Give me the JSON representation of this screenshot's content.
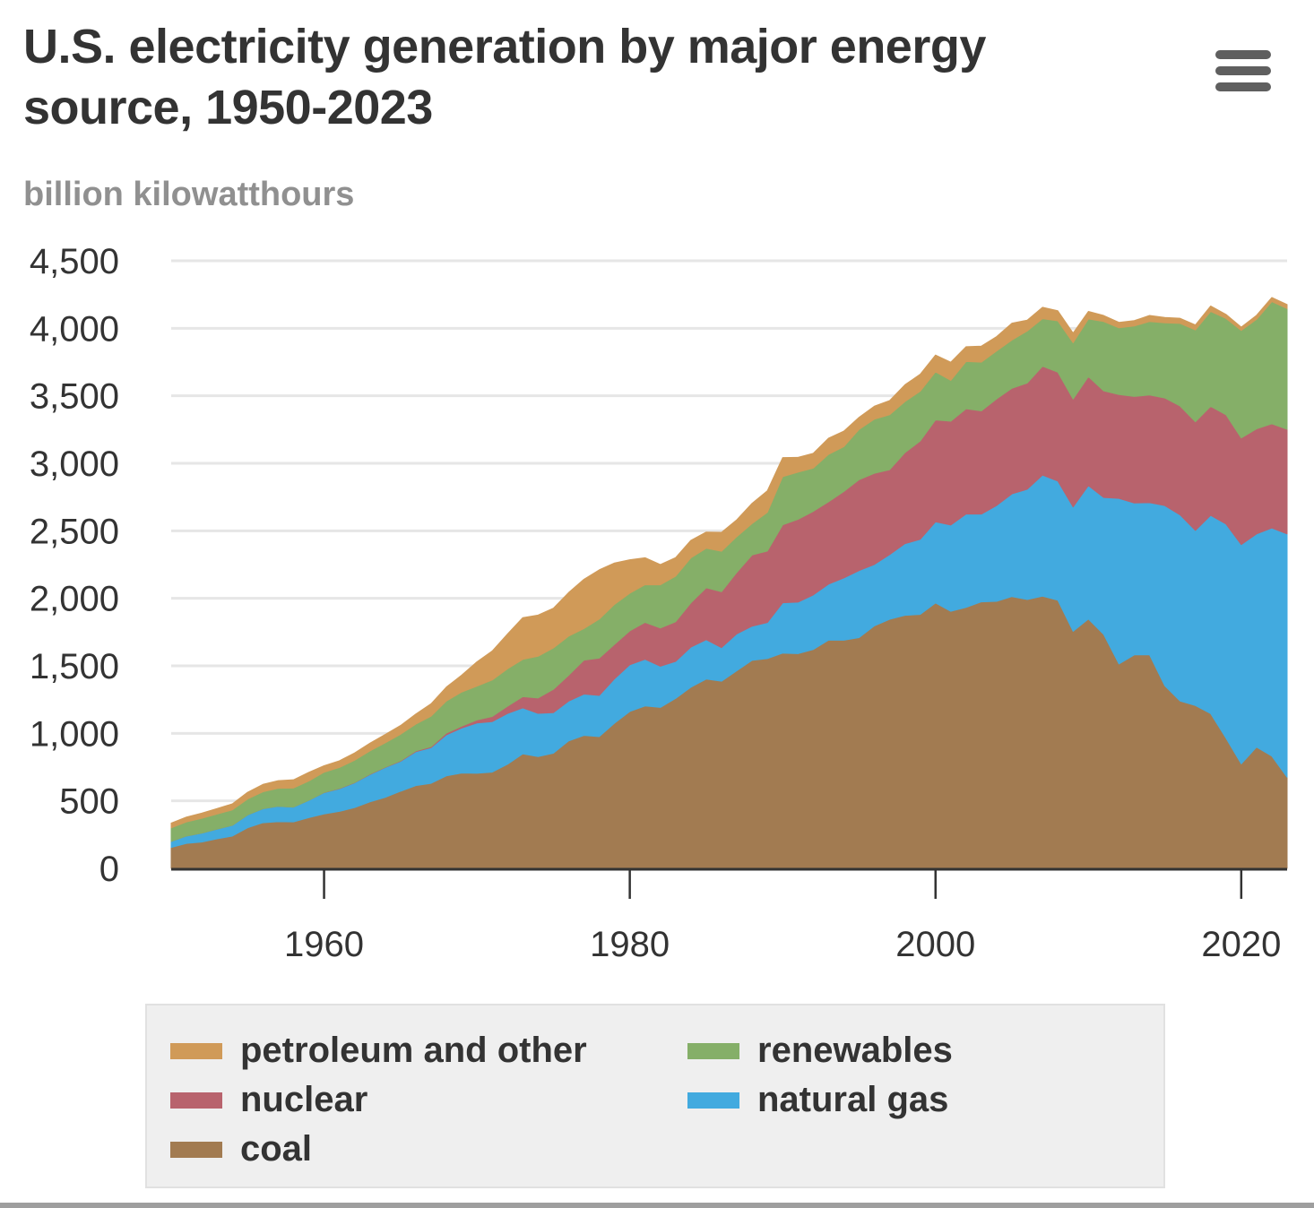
{
  "header": {
    "title": "U.S. electricity generation by major energy source, 1950-2023",
    "menu_icon": "hamburger-menu-icon"
  },
  "chart_data": {
    "type": "area",
    "stacked": true,
    "title": "U.S. electricity generation by major energy source, 1950-2023",
    "ylabel": "billion kilowatthours",
    "xlabel": "",
    "ylim": [
      0,
      4500
    ],
    "xlim": [
      1950,
      2023
    ],
    "yticks": [
      0,
      500,
      1000,
      1500,
      2000,
      2500,
      3000,
      3500,
      4000,
      4500
    ],
    "ytick_labels": [
      "0",
      "500",
      "1,000",
      "1,500",
      "2,000",
      "2,500",
      "3,000",
      "3,500",
      "4,000",
      "4,500"
    ],
    "xticks": [
      1960,
      1980,
      2000,
      2020
    ],
    "xtick_labels": [
      "1960",
      "1980",
      "2000",
      "2020"
    ],
    "grid": true,
    "legend_position": "bottom",
    "x": [
      1950,
      1951,
      1952,
      1953,
      1954,
      1955,
      1956,
      1957,
      1958,
      1959,
      1960,
      1961,
      1962,
      1963,
      1964,
      1965,
      1966,
      1967,
      1968,
      1969,
      1970,
      1971,
      1972,
      1973,
      1974,
      1975,
      1976,
      1977,
      1978,
      1979,
      1980,
      1981,
      1982,
      1983,
      1984,
      1985,
      1986,
      1987,
      1988,
      1989,
      1990,
      1991,
      1992,
      1993,
      1994,
      1995,
      1996,
      1997,
      1998,
      1999,
      2000,
      2001,
      2002,
      2003,
      2004,
      2005,
      2006,
      2007,
      2008,
      2009,
      2010,
      2011,
      2012,
      2013,
      2014,
      2015,
      2016,
      2017,
      2018,
      2019,
      2020,
      2021,
      2022,
      2023
    ],
    "series": [
      {
        "name": "coal",
        "color": "#a27b51",
        "values": [
          155,
          185,
          195,
          219,
          239,
          301,
          338,
          346,
          344,
          376,
          403,
          422,
          450,
          493,
          526,
          571,
          613,
          630,
          685,
          706,
          704,
          713,
          771,
          848,
          828,
          853,
          944,
          985,
          976,
          1075,
          1162,
          1203,
          1192,
          1259,
          1342,
          1402,
          1386,
          1464,
          1541,
          1554,
          1594,
          1590,
          1621,
          1690,
          1690,
          1709,
          1796,
          1845,
          1874,
          1881,
          1966,
          1904,
          1933,
          1974,
          1978,
          2013,
          1991,
          2016,
          1986,
          1756,
          1847,
          1733,
          1514,
          1581,
          1582,
          1352,
          1239,
          1206,
          1146,
          965,
          774,
          898,
          832,
          675
        ]
      },
      {
        "name": "natural gas",
        "color": "#42aadf",
        "values": [
          45,
          55,
          66,
          72,
          80,
          95,
          104,
          114,
          110,
          128,
          158,
          168,
          184,
          202,
          221,
          222,
          251,
          264,
          304,
          333,
          373,
          374,
          376,
          341,
          320,
          300,
          295,
          306,
          305,
          329,
          346,
          346,
          305,
          274,
          297,
          292,
          249,
          273,
          253,
          267,
          373,
          382,
          404,
          415,
          461,
          497,
          455,
          479,
          531,
          556,
          601,
          639,
          691,
          650,
          710,
          761,
          817,
          897,
          883,
          921,
          988,
          1014,
          1226,
          1125,
          1127,
          1335,
          1379,
          1297,
          1469,
          1586,
          1624,
          1579,
          1689,
          1802
        ]
      },
      {
        "name": "nuclear",
        "color": "#b8636d",
        "values": [
          0,
          0,
          0,
          0,
          0,
          0,
          0,
          0,
          0,
          0,
          1,
          2,
          2,
          3,
          3,
          4,
          6,
          8,
          13,
          14,
          22,
          38,
          54,
          83,
          114,
          173,
          191,
          251,
          276,
          255,
          251,
          273,
          283,
          294,
          328,
          384,
          414,
          455,
          527,
          529,
          577,
          613,
          619,
          610,
          640,
          673,
          675,
          629,
          674,
          728,
          754,
          769,
          780,
          764,
          789,
          782,
          787,
          806,
          806,
          799,
          807,
          790,
          769,
          789,
          797,
          797,
          806,
          805,
          807,
          809,
          790,
          778,
          772,
          775
        ]
      },
      {
        "name": "renewables",
        "color": "#85af68",
        "values": [
          100,
          104,
          110,
          111,
          114,
          118,
          125,
          133,
          141,
          143,
          150,
          155,
          165,
          172,
          180,
          196,
          198,
          225,
          237,
          253,
          251,
          270,
          277,
          276,
          309,
          306,
          290,
          234,
          289,
          296,
          279,
          279,
          320,
          337,
          333,
          293,
          300,
          265,
          233,
          287,
          357,
          349,
          320,
          351,
          332,
          372,
          401,
          407,
          378,
          369,
          356,
          302,
          350,
          361,
          355,
          357,
          385,
          352,
          380,
          417,
          427,
          513,
          495,
          522,
          544,
          556,
          612,
          680,
          703,
          713,
          796,
          811,
          905,
          894
        ]
      },
      {
        "name": "petroleum and other",
        "color": "#d09a58",
        "values": [
          35,
          36,
          38,
          41,
          45,
          50,
          55,
          57,
          61,
          64,
          48,
          50,
          54,
          57,
          62,
          65,
          75,
          92,
          104,
          125,
          180,
          215,
          258,
          309,
          305,
          295,
          323,
          365,
          365,
          307,
          248,
          200,
          150,
          138,
          130,
          120,
          140,
          125,
          150,
          160,
          141,
          110,
          110,
          120,
          115,
          90,
          96,
          105,
          125,
          126,
          125,
          135,
          110,
          119,
          107,
          125,
          80,
          85,
          75,
          72,
          56,
          45,
          40,
          40,
          45,
          40,
          38,
          37,
          40,
          30,
          25,
          30,
          30,
          30
        ]
      }
    ]
  },
  "legend": {
    "items": [
      {
        "label": "petroleum and other",
        "color": "#d09a58"
      },
      {
        "label": "renewables",
        "color": "#85af68"
      },
      {
        "label": "nuclear",
        "color": "#b8636d"
      },
      {
        "label": "natural gas",
        "color": "#42aadf"
      },
      {
        "label": "coal",
        "color": "#a27b51"
      }
    ]
  }
}
